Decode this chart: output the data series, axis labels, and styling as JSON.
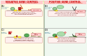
{
  "bg_color": "#f5f5f0",
  "left_panel_bg": "#fffde7",
  "right_panel_bg": "#f0f8f0",
  "title_left": "NEGATIVE GENE CONTROL",
  "title_left_sub": "repressor protein blocks transcription",
  "title_right": "POSITIVE GENE CONTROL",
  "title_right_sub": "activator protein stimulates transcription",
  "dna_color": "#888888",
  "promoter_color": "#ffee58",
  "operator_color": "#ffee58",
  "repressor_color": "#cc3333",
  "activator_color": "#66aa66",
  "rnapol_color": "#55aa55",
  "ligand_color": "#ff8888",
  "text_pink_bg": "#fdd",
  "text_green_bg": "#dfd",
  "arrow_color": "#cc6600"
}
